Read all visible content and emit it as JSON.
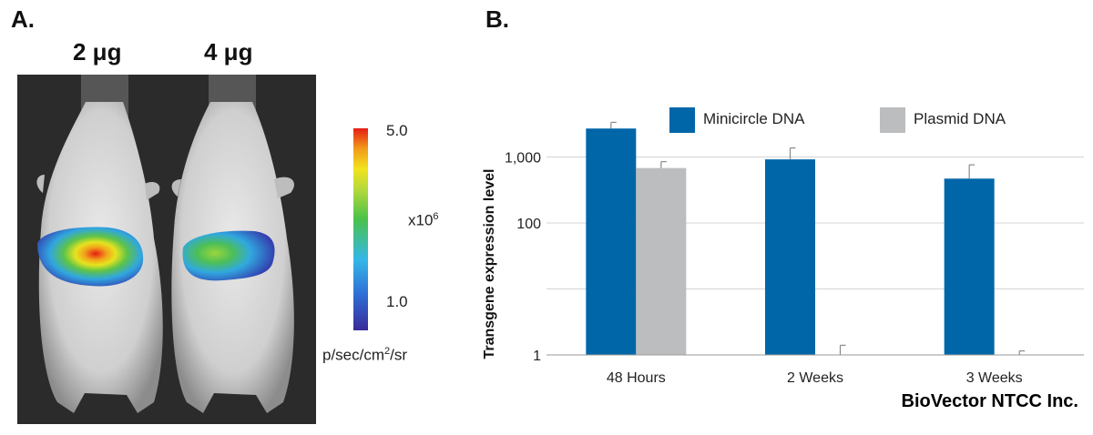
{
  "panel_a": {
    "label": "A.",
    "doses": [
      "2 μg",
      "4 μg"
    ],
    "colorbar": {
      "max": "5.0",
      "min": "1.0",
      "multiplier_base": "x10",
      "multiplier_exp": "6",
      "unit_base": "p/sec/cm",
      "unit_exp": "2",
      "unit_tail": "/sr"
    }
  },
  "panel_b": {
    "label": "B.",
    "credit": "BioVector NTCC Inc."
  },
  "chart_data": {
    "type": "bar",
    "categories": [
      "48 Hours",
      "2 Weeks",
      "3 Weeks"
    ],
    "series": [
      {
        "name": "Minicircle DNA",
        "color": "#0066a8",
        "values": [
          2700,
          920,
          470
        ],
        "error": [
          650,
          450,
          290
        ]
      },
      {
        "name": "Plasmid DNA",
        "color": "#bcbdbf",
        "values": [
          680,
          1,
          1
        ],
        "error": [
          170,
          0.4,
          0.15
        ]
      }
    ],
    "ylabel": "Transgene expression level",
    "ytick_labels": [
      "1",
      "100",
      "1,000"
    ],
    "ytick_values": [
      1,
      100,
      1000
    ],
    "ygrid_values": [
      1,
      10,
      100,
      1000
    ],
    "yscale": "log",
    "ylim": [
      1,
      10000
    ],
    "grid": true,
    "legend_position": "top"
  }
}
